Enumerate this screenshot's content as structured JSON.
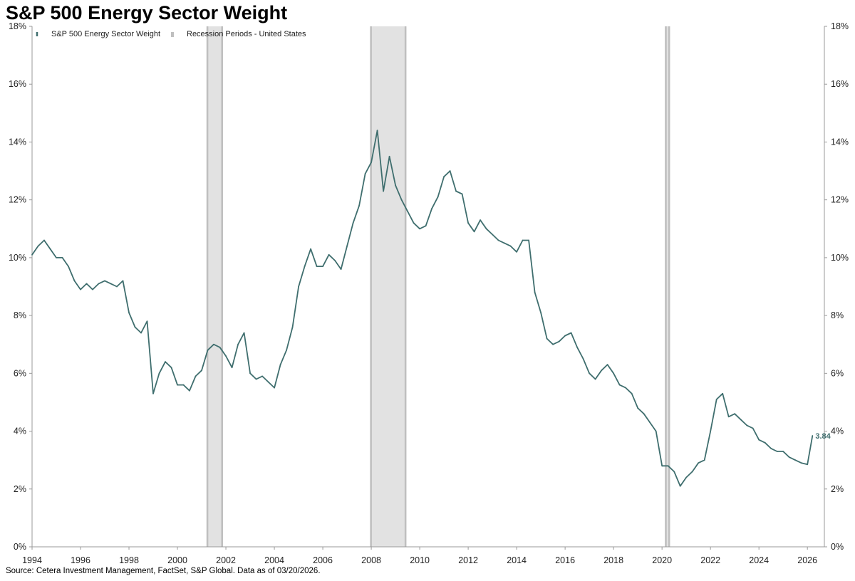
{
  "title": "S&P 500 Energy Sector Weight",
  "source": "Source: Cetera Investment Management, FactSet, S&P Global. Data as of 03/20/2026.",
  "colors": {
    "line": "#3f6e6e",
    "recession_fill": "#e2e2e2",
    "recession_edge": "#bfbfbf",
    "axis": "#9a9a9a"
  },
  "chart_data": {
    "type": "line",
    "title": "S&P 500 Energy Sector Weight",
    "xlim": [
      1994.0,
      2026.7
    ],
    "ylim": [
      0,
      18
    ],
    "y_unit": "%",
    "grid": false,
    "legend_placement": "top-left",
    "x_ticks": [
      "1994",
      "1996",
      "1998",
      "2000",
      "2002",
      "2004",
      "2006",
      "2008",
      "2010",
      "2012",
      "2014",
      "2016",
      "2018",
      "2020",
      "2022",
      "2024",
      "2026"
    ],
    "y_ticks": [
      "0%",
      "2%",
      "4%",
      "6%",
      "8%",
      "10%",
      "12%",
      "14%",
      "16%",
      "18%"
    ],
    "series": [
      {
        "name": "S&P 500 Energy Sector Weight",
        "end_label": "3.84",
        "x": [
          1994.0,
          1994.25,
          1994.5,
          1994.75,
          1995.0,
          1995.25,
          1995.5,
          1995.75,
          1996.0,
          1996.25,
          1996.5,
          1996.75,
          1997.0,
          1997.25,
          1997.5,
          1997.75,
          1998.0,
          1998.25,
          1998.5,
          1998.75,
          1999.0,
          1999.25,
          1999.5,
          1999.75,
          2000.0,
          2000.25,
          2000.5,
          2000.75,
          2001.0,
          2001.25,
          2001.5,
          2001.75,
          2002.0,
          2002.25,
          2002.5,
          2002.75,
          2003.0,
          2003.25,
          2003.5,
          2003.75,
          2004.0,
          2004.25,
          2004.5,
          2004.75,
          2005.0,
          2005.25,
          2005.5,
          2005.75,
          2006.0,
          2006.25,
          2006.5,
          2006.75,
          2007.0,
          2007.25,
          2007.5,
          2007.75,
          2008.0,
          2008.25,
          2008.5,
          2008.75,
          2009.0,
          2009.25,
          2009.5,
          2009.75,
          2010.0,
          2010.25,
          2010.5,
          2010.75,
          2011.0,
          2011.25,
          2011.5,
          2011.75,
          2012.0,
          2012.25,
          2012.5,
          2012.75,
          2013.0,
          2013.25,
          2013.5,
          2013.75,
          2014.0,
          2014.25,
          2014.5,
          2014.75,
          2015.0,
          2015.25,
          2015.5,
          2015.75,
          2016.0,
          2016.25,
          2016.5,
          2016.75,
          2017.0,
          2017.25,
          2017.5,
          2017.75,
          2018.0,
          2018.25,
          2018.5,
          2018.75,
          2019.0,
          2019.25,
          2019.5,
          2019.75,
          2020.0,
          2020.25,
          2020.5,
          2020.75,
          2021.0,
          2021.25,
          2021.5,
          2021.75,
          2022.0,
          2022.25,
          2022.5,
          2022.75,
          2023.0,
          2023.25,
          2023.5,
          2023.75,
          2024.0,
          2024.25,
          2024.5,
          2024.75,
          2025.0,
          2025.25,
          2025.5,
          2025.75,
          2026.0,
          2026.21
        ],
        "values": [
          10.1,
          10.4,
          10.6,
          10.3,
          10.0,
          10.0,
          9.7,
          9.2,
          8.9,
          9.1,
          8.9,
          9.1,
          9.2,
          9.1,
          9.0,
          9.2,
          8.1,
          7.6,
          7.4,
          7.8,
          5.3,
          6.0,
          6.4,
          6.2,
          5.6,
          5.6,
          5.4,
          5.9,
          6.1,
          6.8,
          7.0,
          6.9,
          6.6,
          6.2,
          7.0,
          7.4,
          6.0,
          5.8,
          5.9,
          5.7,
          5.5,
          6.3,
          6.8,
          7.6,
          9.0,
          9.7,
          10.3,
          9.7,
          9.7,
          10.1,
          9.9,
          9.6,
          10.4,
          11.2,
          11.8,
          12.9,
          13.3,
          14.4,
          12.3,
          13.5,
          12.5,
          12.0,
          11.6,
          11.2,
          11.0,
          11.1,
          11.7,
          12.1,
          12.8,
          13.0,
          12.3,
          12.2,
          11.2,
          10.9,
          11.3,
          11.0,
          10.8,
          10.6,
          10.5,
          10.4,
          10.2,
          10.6,
          10.6,
          8.8,
          8.1,
          7.2,
          7.0,
          7.1,
          7.3,
          7.4,
          6.9,
          6.5,
          6.0,
          5.8,
          6.1,
          6.3,
          6.0,
          5.6,
          5.5,
          5.3,
          4.8,
          4.6,
          4.3,
          4.0,
          2.8,
          2.8,
          2.6,
          2.1,
          2.4,
          2.6,
          2.9,
          3.0,
          4.0,
          5.1,
          5.3,
          4.5,
          4.6,
          4.4,
          4.2,
          4.1,
          3.7,
          3.6,
          3.4,
          3.3,
          3.3,
          3.1,
          3.0,
          2.9,
          2.85,
          3.84
        ]
      }
    ],
    "recessions": [
      {
        "name": "Recession Periods - United States",
        "start": 2001.2,
        "end": 2001.88
      },
      {
        "name": "Recession Periods - United States",
        "start": 2007.95,
        "end": 2009.45
      },
      {
        "name": "Recession Periods - United States",
        "start": 2020.12,
        "end": 2020.33
      }
    ],
    "legend": [
      {
        "label": "S&P 500 Energy Sector Weight",
        "kind": "line"
      },
      {
        "label": "Recession Periods - United States",
        "kind": "band"
      }
    ]
  }
}
